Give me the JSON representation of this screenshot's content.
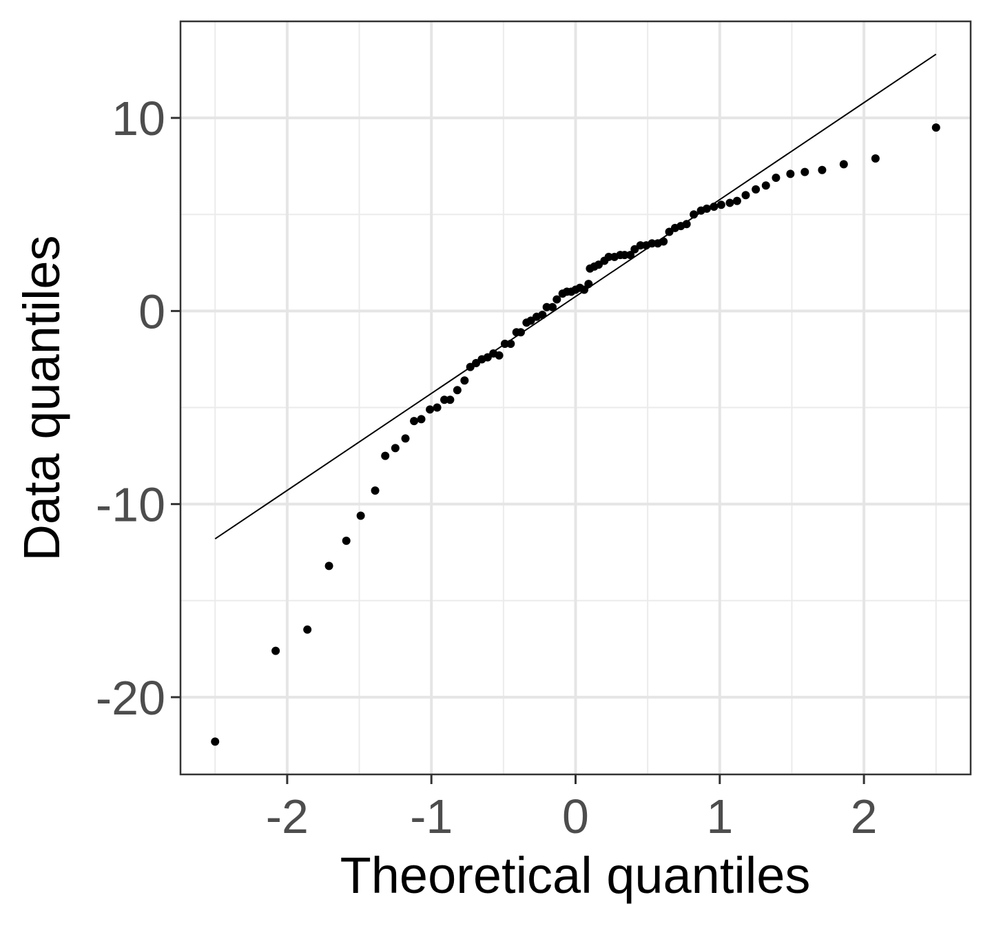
{
  "chart_data": {
    "type": "scatter",
    "title": "",
    "xlabel": "Theoretical quantiles",
    "ylabel": "Data quantiles",
    "xlim": [
      -2.74,
      2.74
    ],
    "ylim": [
      -24.0,
      15.0
    ],
    "x_ticks": [
      -2,
      -1,
      0,
      1,
      2
    ],
    "x_tick_labels": [
      "-2",
      "-1",
      "0",
      "1",
      "2"
    ],
    "y_ticks": [
      -20,
      -10,
      0,
      10
    ],
    "y_tick_labels": [
      "-20",
      "-10",
      "0",
      "10"
    ],
    "x_minor_ticks": [
      -2.5,
      -1.5,
      -0.5,
      0.5,
      1.5,
      2.5
    ],
    "y_minor_ticks": [
      -15,
      -5,
      5
    ],
    "grid": true,
    "legend": "none",
    "colors": {
      "points": "#000000",
      "reference_line": "#000000",
      "grid_major": "#e5e5e5",
      "grid_minor": "#ebebeb",
      "panel_border": "#333333",
      "tick_label": "#4d4d4d"
    },
    "reference_line": {
      "x": [
        -2.5,
        2.5
      ],
      "y": [
        -11.8,
        13.3
      ]
    },
    "series": [
      {
        "x": [
          -2.5,
          -2.08,
          -1.86,
          -1.71,
          -1.59,
          -1.49,
          -1.39,
          -1.32,
          -1.25,
          -1.18,
          -1.12,
          -1.07,
          -1.01,
          -0.96,
          -0.91,
          -0.87,
          -0.82,
          -0.77,
          -0.73,
          -0.69,
          -0.65,
          -0.61,
          -0.57,
          -0.53,
          -0.49,
          -0.45,
          -0.41,
          -0.38,
          -0.34,
          -0.31,
          -0.27,
          -0.23,
          -0.2,
          -0.16,
          -0.13,
          -0.09,
          -0.06,
          -0.03,
          0.0,
          0.03,
          0.06,
          0.09,
          0.1,
          0.13,
          0.16,
          0.2,
          0.23,
          0.27,
          0.31,
          0.34,
          0.38,
          0.41,
          0.45,
          0.49,
          0.53,
          0.57,
          0.61,
          0.65,
          0.69,
          0.73,
          0.77,
          0.82,
          0.87,
          0.91,
          0.96,
          1.01,
          1.07,
          1.12,
          1.18,
          1.25,
          1.32,
          1.39,
          1.49,
          1.59,
          1.71,
          1.86,
          2.08,
          2.5
        ],
        "y": [
          -22.3,
          -17.6,
          -16.5,
          -13.2,
          -11.9,
          -10.6,
          -9.3,
          -7.5,
          -7.1,
          -6.6,
          -5.7,
          -5.6,
          -5.1,
          -5.0,
          -4.6,
          -4.6,
          -4.1,
          -3.6,
          -2.9,
          -2.7,
          -2.5,
          -2.4,
          -2.2,
          -2.3,
          -1.7,
          -1.7,
          -1.1,
          -1.1,
          -0.6,
          -0.5,
          -0.3,
          -0.2,
          0.2,
          0.2,
          0.6,
          0.9,
          1.0,
          1.0,
          1.1,
          1.2,
          1.1,
          1.4,
          2.2,
          2.3,
          2.4,
          2.6,
          2.8,
          2.8,
          2.9,
          2.9,
          2.9,
          3.2,
          3.4,
          3.4,
          3.5,
          3.5,
          3.6,
          4.1,
          4.3,
          4.4,
          4.5,
          5.0,
          5.2,
          5.3,
          5.4,
          5.5,
          5.6,
          5.7,
          6.0,
          6.3,
          6.5,
          6.9,
          7.1,
          7.2,
          7.3,
          7.6,
          7.9,
          9.5
        ]
      }
    ]
  }
}
